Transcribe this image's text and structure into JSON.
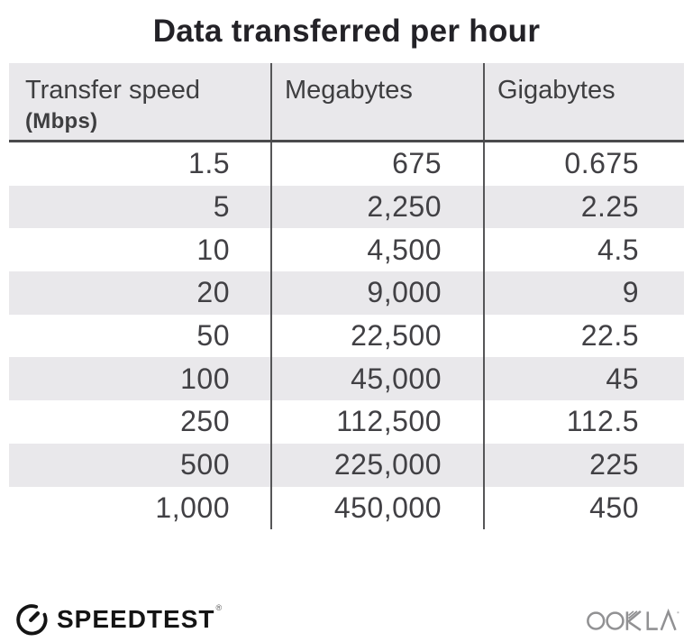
{
  "title": "Data transferred per hour",
  "table": {
    "columns": [
      {
        "label": "Transfer speed",
        "sublabel": "(Mbps)"
      },
      {
        "label": "Megabytes",
        "sublabel": ""
      },
      {
        "label": "Gigabytes",
        "sublabel": ""
      }
    ],
    "rows": [
      [
        "1.5",
        "675",
        "0.675"
      ],
      [
        "5",
        "2,250",
        "2.25"
      ],
      [
        "10",
        "4,500",
        "4.5"
      ],
      [
        "20",
        "9,000",
        "9"
      ],
      [
        "50",
        "22,500",
        "22.5"
      ],
      [
        "100",
        "45,000",
        "45"
      ],
      [
        "250",
        "112,500",
        "112.5"
      ],
      [
        "500",
        "225,000",
        "225"
      ],
      [
        "1,000",
        "450,000",
        "450"
      ]
    ]
  },
  "chart_data": {
    "type": "table",
    "title": "Data transferred per hour",
    "columns": [
      "Transfer speed (Mbps)",
      "Megabytes",
      "Gigabytes"
    ],
    "rows": [
      [
        1.5,
        675,
        0.675
      ],
      [
        5,
        2250,
        2.25
      ],
      [
        10,
        4500,
        4.5
      ],
      [
        20,
        9000,
        9
      ],
      [
        50,
        22500,
        22.5
      ],
      [
        100,
        45000,
        45
      ],
      [
        250,
        112500,
        112.5
      ],
      [
        500,
        225000,
        225
      ],
      [
        1000,
        450000,
        450
      ]
    ]
  },
  "footer": {
    "brand": "SPEEDTEST",
    "brand_trademark": "®",
    "company": "OOKLA"
  },
  "colors": {
    "header_bg": "#e9e8eb",
    "alt_row_bg": "#e9e8eb",
    "divider": "#565658",
    "header_border": "#4a4a4c",
    "text": "#414044",
    "title": "#232227",
    "speedtest_black": "#141414",
    "ookla_gray": "#919193"
  }
}
